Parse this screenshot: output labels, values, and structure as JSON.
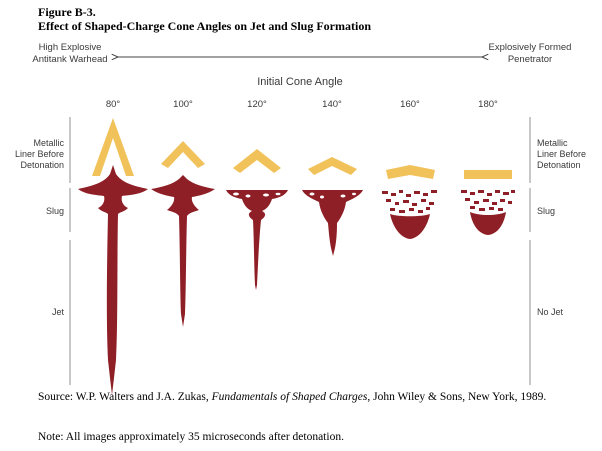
{
  "figure": {
    "label": "Figure B-3.",
    "title": "Effect of Shaped-Charge Cone Angles on Jet and Slug Formation"
  },
  "scale": {
    "left_label_1": "High Explosive",
    "left_label_2": "Antitank Warhead",
    "right_label_1": "Explosively Formed",
    "right_label_2": "Penetrator"
  },
  "axis_title": "Initial Cone Angle",
  "angles": [
    "80°",
    "100°",
    "120°",
    "140°",
    "160°",
    "180°"
  ],
  "rows_left": {
    "liner_1": "Metallic",
    "liner_2": "Liner Before",
    "liner_3": "Detonation",
    "slug": "Slug",
    "jet": "Jet"
  },
  "rows_right": {
    "liner_1": "Metallic",
    "liner_2": "Liner Before",
    "liner_3": "Detonation",
    "slug": "Slug",
    "jet": "No Jet"
  },
  "source": {
    "prefix": "Source: W.P. Walters and J.A. Zukas, ",
    "book": "Fundamentals of Shaped Charges",
    "suffix": ", John Wiley & Sons, New York, 1989."
  },
  "note": "Note: All images approximately 35 microseconds after detonation.",
  "colors": {
    "liner": "#f1c15a",
    "metal": "#8f1f26",
    "text": "#3a3a3a",
    "rule": "#777777"
  }
}
